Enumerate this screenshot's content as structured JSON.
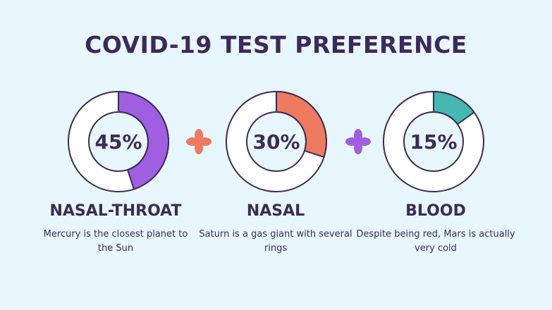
{
  "title": "COVID-19 TEST PREFERENCE",
  "chart_data": {
    "type": "donut",
    "title": "COVID-19 TEST PREFERENCE",
    "unit": "%",
    "items": [
      {
        "label": "NASAL-THROAT",
        "value": 45,
        "display": "45%",
        "description": "Mercury is the closest planet to the Sun",
        "color": "#a05fe0"
      },
      {
        "label": "NASAL",
        "value": 30,
        "display": "30%",
        "description": "Saturn is a gas giant with several rings",
        "color": "#ee7b60"
      },
      {
        "label": "BLOOD",
        "value": 15,
        "display": "15%",
        "description": "Despite being red, Mars is actually very cold",
        "color": "#47b8b1"
      }
    ],
    "separator_colors": [
      "#ee7b60",
      "#a05fe0"
    ]
  },
  "colors": {
    "background": "#e8f6fd",
    "text": "#3a2c57",
    "ring_fill": "#ffffff",
    "ring_stroke": "#3a2c57"
  }
}
